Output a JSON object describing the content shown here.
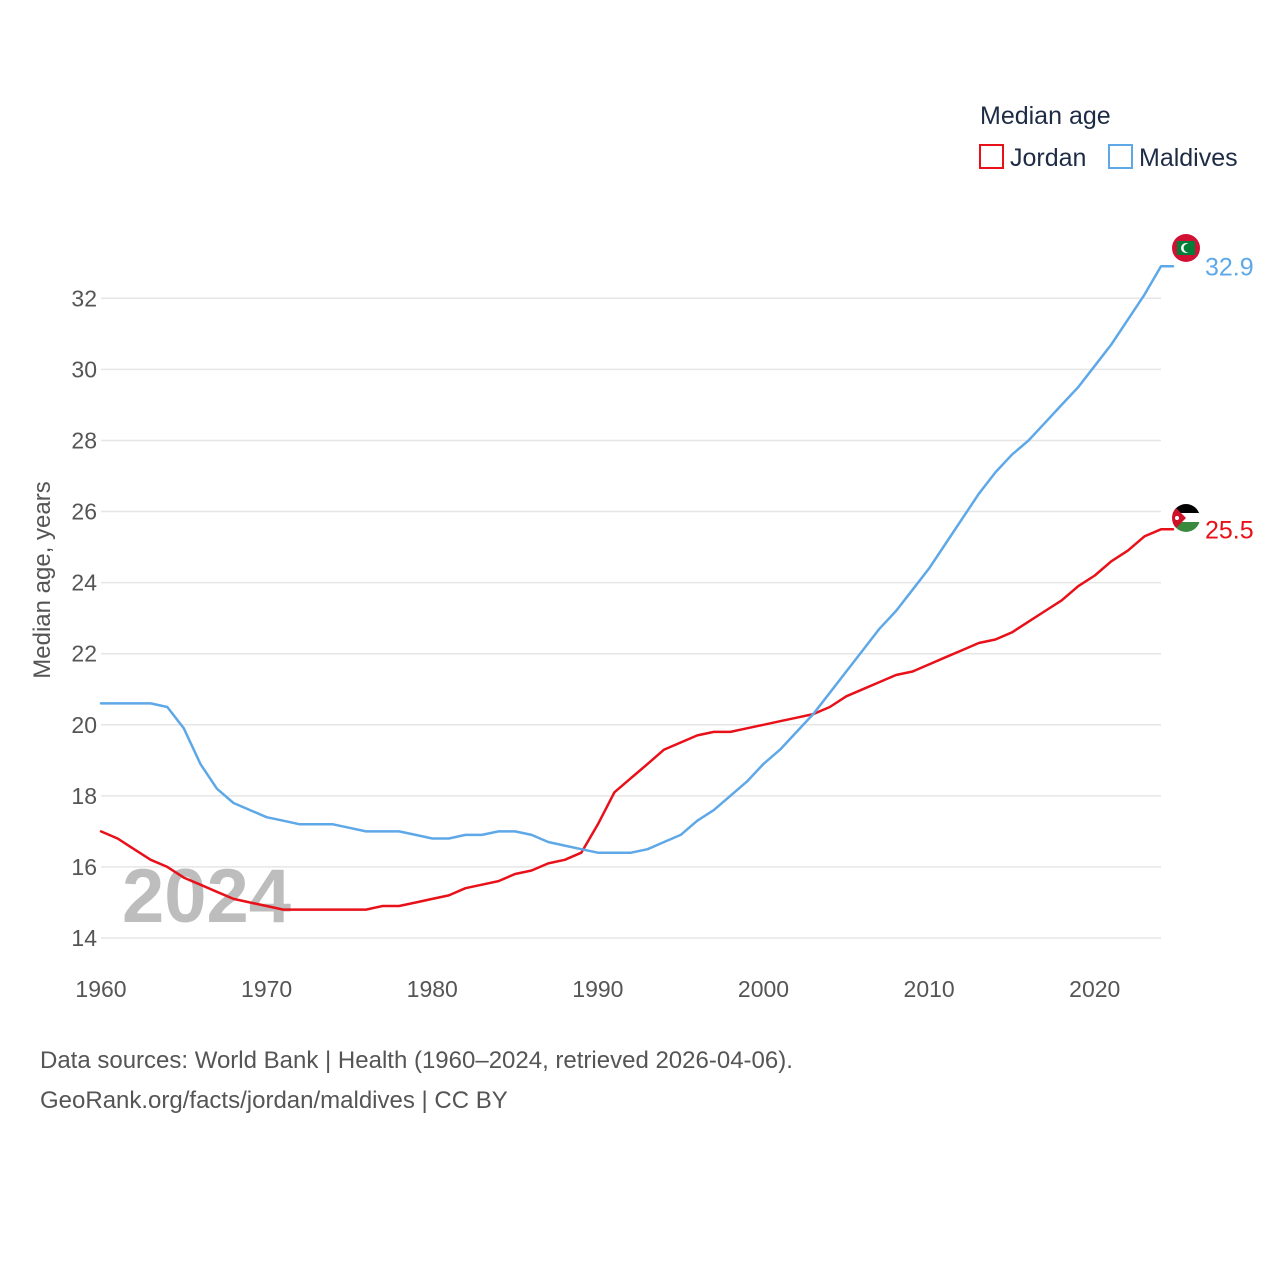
{
  "chart_data": {
    "type": "line",
    "title": "",
    "xlabel": "",
    "ylabel": "Median age, years",
    "xlim": [
      1960,
      2024
    ],
    "ylim": [
      14,
      33.5
    ],
    "x_ticks": [
      1960,
      1970,
      1980,
      1990,
      2000,
      2010,
      2020
    ],
    "y_ticks": [
      14,
      16,
      18,
      20,
      22,
      24,
      26,
      28,
      30,
      32
    ],
    "grid": true,
    "legend": {
      "title": "Median age",
      "position": "top-right"
    },
    "watermark_year": "2024",
    "x": [
      1960,
      1961,
      1962,
      1963,
      1964,
      1965,
      1966,
      1967,
      1968,
      1969,
      1970,
      1971,
      1972,
      1973,
      1974,
      1975,
      1976,
      1977,
      1978,
      1979,
      1980,
      1981,
      1982,
      1983,
      1984,
      1985,
      1986,
      1987,
      1988,
      1989,
      1990,
      1991,
      1992,
      1993,
      1994,
      1995,
      1996,
      1997,
      1998,
      1999,
      2000,
      2001,
      2002,
      2003,
      2004,
      2005,
      2006,
      2007,
      2008,
      2009,
      2010,
      2011,
      2012,
      2013,
      2014,
      2015,
      2016,
      2017,
      2018,
      2019,
      2020,
      2021,
      2022,
      2023,
      2024
    ],
    "series": [
      {
        "name": "Jordan",
        "color": "#e8111a",
        "end_label": "25.5",
        "flag": "jordan-flag",
        "values": [
          17.0,
          16.8,
          16.5,
          16.2,
          16.0,
          15.7,
          15.5,
          15.3,
          15.1,
          15.0,
          14.9,
          14.8,
          14.8,
          14.8,
          14.8,
          14.8,
          14.8,
          14.9,
          14.9,
          15.0,
          15.1,
          15.2,
          15.4,
          15.5,
          15.6,
          15.8,
          15.9,
          16.1,
          16.2,
          16.4,
          17.2,
          18.1,
          18.5,
          18.9,
          19.3,
          19.5,
          19.7,
          19.8,
          19.8,
          19.9,
          20.0,
          20.1,
          20.2,
          20.3,
          20.5,
          20.8,
          21.0,
          21.2,
          21.4,
          21.5,
          21.7,
          21.9,
          22.1,
          22.3,
          22.4,
          22.6,
          22.9,
          23.2,
          23.5,
          23.9,
          24.2,
          24.6,
          24.9,
          25.3,
          25.5
        ]
      },
      {
        "name": "Maldives",
        "color": "#5fa8e8",
        "end_label": "32.9",
        "flag": "maldives-flag",
        "values": [
          20.6,
          20.6,
          20.6,
          20.6,
          20.5,
          19.9,
          18.9,
          18.2,
          17.8,
          17.6,
          17.4,
          17.3,
          17.2,
          17.2,
          17.2,
          17.1,
          17.0,
          17.0,
          17.0,
          16.9,
          16.8,
          16.8,
          16.9,
          16.9,
          17.0,
          17.0,
          16.9,
          16.7,
          16.6,
          16.5,
          16.4,
          16.4,
          16.4,
          16.5,
          16.7,
          16.9,
          17.3,
          17.6,
          18.0,
          18.4,
          18.9,
          19.3,
          19.8,
          20.3,
          20.9,
          21.5,
          22.1,
          22.7,
          23.2,
          23.8,
          24.4,
          25.1,
          25.8,
          26.5,
          27.1,
          27.6,
          28.0,
          28.5,
          29.0,
          29.5,
          30.1,
          30.7,
          31.4,
          32.1,
          32.9
        ]
      }
    ]
  },
  "footer": {
    "source_line": "Data sources: World Bank | Health (1960–2024, retrieved 2026-04-06).",
    "credit_line": "GeoRank.org/facts/jordan/maldives | CC BY"
  }
}
